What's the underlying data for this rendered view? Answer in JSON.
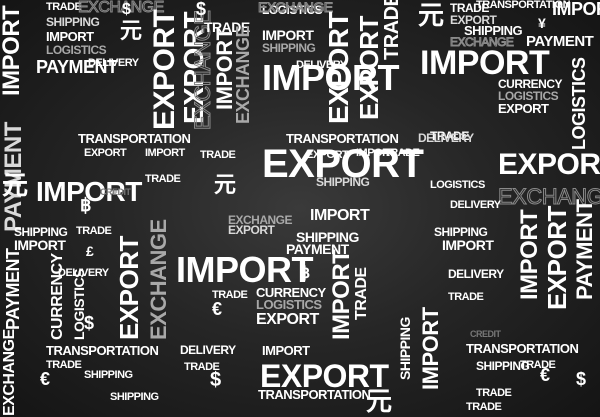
{
  "words": {
    "import": "IMPORT",
    "export": "EXPORT",
    "trade": "TRADE",
    "shipping": "SHIPPING",
    "payment": "PAYMENT",
    "delivery": "DELIVERY",
    "logistics": "LOGISTICS",
    "currency": "CURRENCY",
    "transportation": "TRANSPORTATION",
    "exchange": "EXCHANGE",
    "credit": "CREDIT",
    "yuan": "元",
    "dollar": "$",
    "euro": "€",
    "pound": "£",
    "yen": "¥",
    "baht": "฿"
  }
}
